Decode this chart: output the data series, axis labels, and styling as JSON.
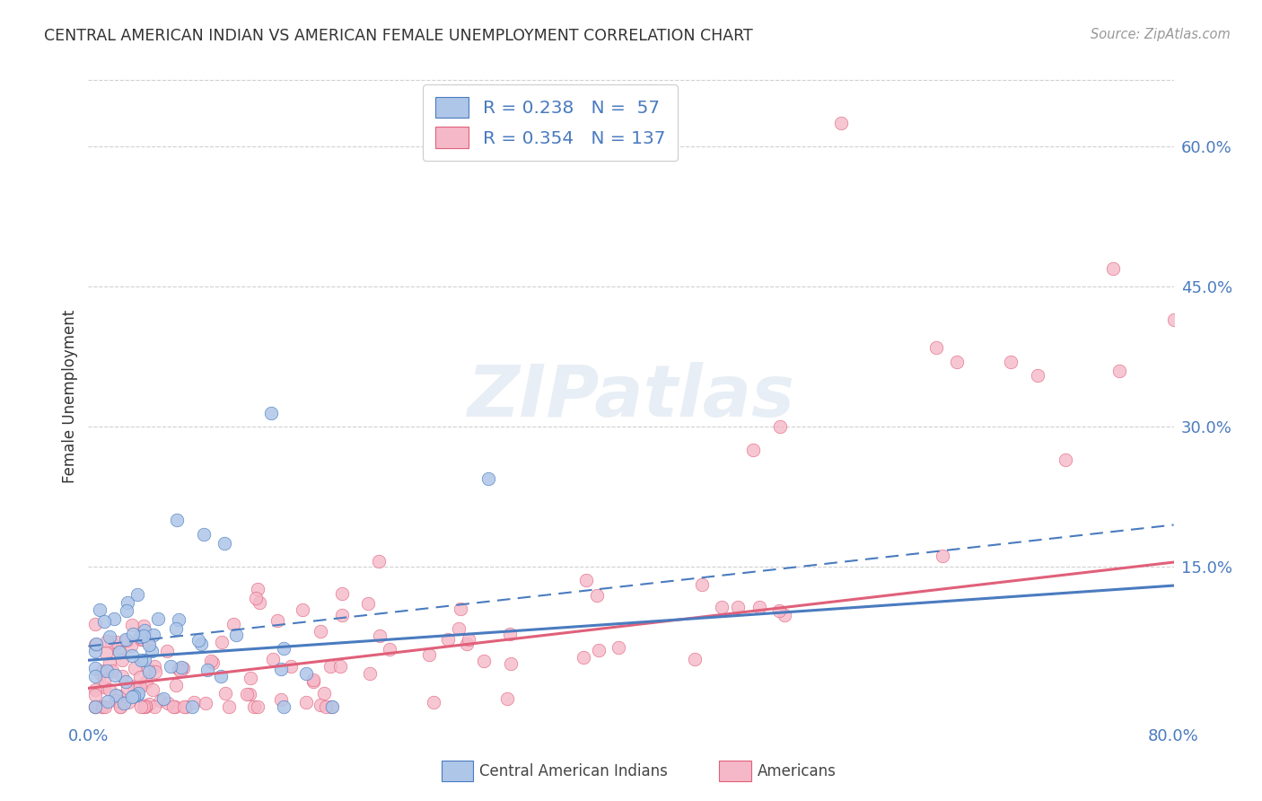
{
  "title": "CENTRAL AMERICAN INDIAN VS AMERICAN FEMALE UNEMPLOYMENT CORRELATION CHART",
  "source": "Source: ZipAtlas.com",
  "ylabel": "Female Unemployment",
  "xlim": [
    0.0,
    0.8
  ],
  "ylim": [
    -0.015,
    0.68
  ],
  "yticks_right": [
    0.15,
    0.3,
    0.45,
    0.6
  ],
  "ytick_labels_right": [
    "15.0%",
    "30.0%",
    "45.0%",
    "60.0%"
  ],
  "xtick_positions": [
    0.0,
    0.16,
    0.32,
    0.48,
    0.64,
    0.8
  ],
  "xtick_labels": [
    "0.0%",
    "",
    "",
    "",
    "",
    "80.0%"
  ],
  "background_color": "#ffffff",
  "grid_color": "#d0d0d0",
  "blue_fill": "#aec6e8",
  "blue_edge": "#4a7bbf",
  "pink_fill": "#f5b8c8",
  "pink_edge": "#e0607a",
  "blue_line_color": "#4a7bbf",
  "pink_line_color": "#e0607a",
  "watermark_text": "ZIPatlas",
  "watermark_color": "#e8eef5",
  "legend_R1": "R = 0.238",
  "legend_N1": "N =  57",
  "legend_R2": "R = 0.354",
  "legend_N2": "N = 137",
  "legend_label1": "Central American Indians",
  "legend_label2": "Americans",
  "title_color": "#333333",
  "source_color": "#999999",
  "axis_label_color": "#333333",
  "tick_label_color": "#4a7bbf"
}
